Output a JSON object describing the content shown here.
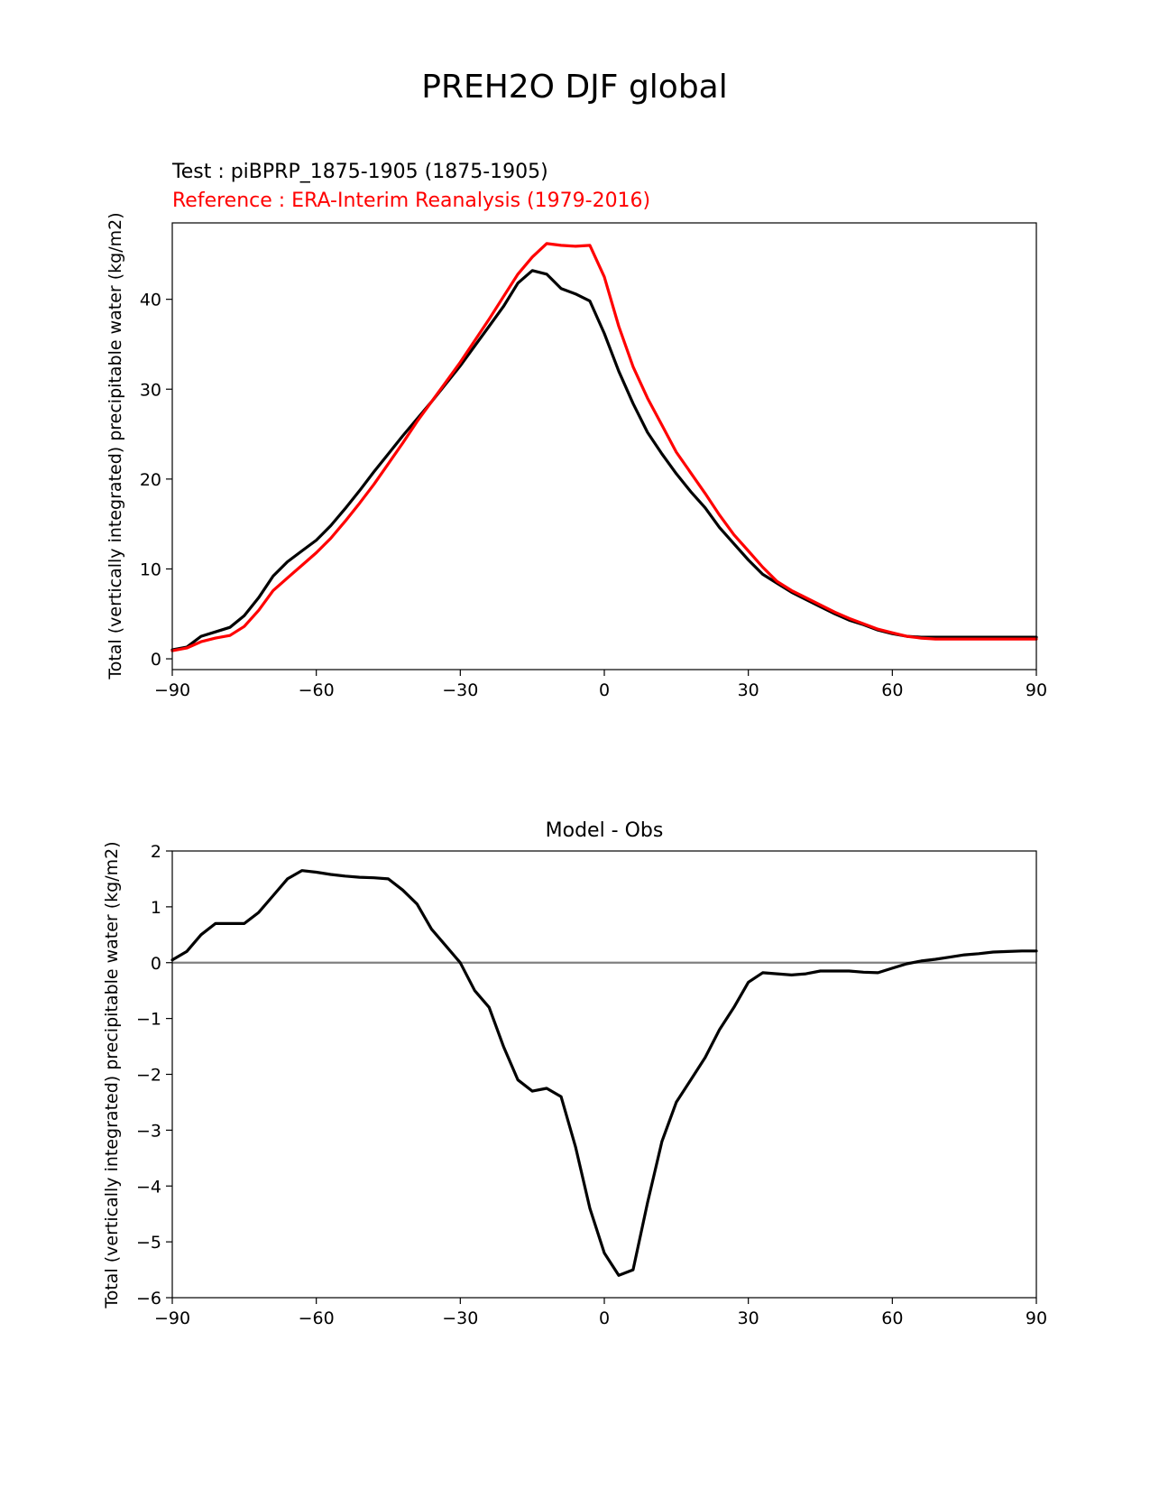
{
  "suptitle": "PREH2O DJF global",
  "colors": {
    "test": "#000000",
    "reference": "#ff0000",
    "zero_line": "#808080"
  },
  "legend": {
    "test": "Test : piBPRP_1875-1905 (1875-1905)",
    "reference": "Reference : ERA-Interim Reanalysis (1979-2016)"
  },
  "chart_data": [
    {
      "type": "line",
      "title": "",
      "xlabel": "",
      "ylabel": "Total (vertically integrated) precipitable water (kg/m2)",
      "xlim": [
        -90,
        90
      ],
      "ylim": [
        -1.2,
        48.5
      ],
      "xticks": [
        -90,
        -60,
        -30,
        0,
        30,
        60,
        90
      ],
      "xtick_labels": [
        "−90",
        "−60",
        "−30",
        "0",
        "30",
        "60",
        "90"
      ],
      "yticks": [
        0,
        10,
        20,
        30,
        40
      ],
      "ytick_labels": [
        "0",
        "10",
        "20",
        "30",
        "40"
      ],
      "series": [
        {
          "name": "Test : piBPRP_1875-1905 (1875-1905)",
          "color": "#000000",
          "x": [
            -90,
            -87,
            -84,
            -81,
            -78,
            -75,
            -72,
            -69,
            -66,
            -63,
            -60,
            -57,
            -54,
            -51,
            -48,
            -45,
            -42,
            -39,
            -36,
            -33,
            -30,
            -27,
            -24,
            -21,
            -18,
            -15,
            -12,
            -9,
            -6,
            -3,
            0,
            3,
            6,
            9,
            12,
            15,
            18,
            21,
            24,
            27,
            30,
            33,
            36,
            39,
            42,
            45,
            48,
            51,
            54,
            57,
            60,
            63,
            66,
            69,
            72,
            75,
            78,
            81,
            84,
            87,
            90
          ],
          "y": [
            1.0,
            1.3,
            2.5,
            3.0,
            3.5,
            4.8,
            6.8,
            9.2,
            10.8,
            12.0,
            13.2,
            14.8,
            16.7,
            18.7,
            20.8,
            22.8,
            24.8,
            26.7,
            28.6,
            30.6,
            32.6,
            34.8,
            37.0,
            39.2,
            41.8,
            43.2,
            42.8,
            41.2,
            40.6,
            39.8,
            36.2,
            32.0,
            28.4,
            25.2,
            22.8,
            20.6,
            18.6,
            16.8,
            14.6,
            12.8,
            11.0,
            9.4,
            8.4,
            7.4,
            6.6,
            5.8,
            5.0,
            4.3,
            3.8,
            3.2,
            2.8,
            2.5,
            2.4,
            2.4,
            2.4,
            2.4,
            2.4,
            2.4,
            2.4,
            2.4,
            2.4
          ]
        },
        {
          "name": "Reference : ERA-Interim Reanalysis (1979-2016)",
          "color": "#ff0000",
          "x": [
            -90,
            -87,
            -84,
            -81,
            -78,
            -75,
            -72,
            -69,
            -66,
            -63,
            -60,
            -57,
            -54,
            -51,
            -48,
            -45,
            -42,
            -39,
            -36,
            -33,
            -30,
            -27,
            -24,
            -21,
            -18,
            -15,
            -12,
            -9,
            -6,
            -3,
            0,
            3,
            6,
            9,
            12,
            15,
            18,
            21,
            24,
            27,
            30,
            33,
            36,
            39,
            42,
            45,
            48,
            51,
            54,
            57,
            60,
            63,
            66,
            69,
            72,
            75,
            78,
            81,
            84,
            87,
            90
          ],
          "y": [
            0.9,
            1.2,
            1.9,
            2.3,
            2.6,
            3.6,
            5.4,
            7.6,
            9.0,
            10.4,
            11.8,
            13.4,
            15.3,
            17.3,
            19.4,
            21.7,
            24.0,
            26.4,
            28.6,
            30.8,
            33.0,
            35.4,
            37.8,
            40.3,
            42.8,
            44.7,
            46.2,
            46.0,
            45.9,
            46.0,
            42.5,
            37.0,
            32.5,
            29.0,
            26.0,
            23.0,
            20.7,
            18.4,
            16.0,
            13.8,
            12.0,
            10.2,
            8.6,
            7.6,
            6.8,
            6.0,
            5.2,
            4.5,
            3.9,
            3.3,
            2.9,
            2.5,
            2.3,
            2.2,
            2.2,
            2.2,
            2.2,
            2.2,
            2.2,
            2.2,
            2.2
          ]
        }
      ]
    },
    {
      "type": "line",
      "title": "Model - Obs",
      "xlabel": "",
      "ylabel": "Total (vertically integrated) precipitable water (kg/m2)",
      "xlim": [
        -90,
        90
      ],
      "ylim": [
        -6,
        2
      ],
      "xticks": [
        -90,
        -60,
        -30,
        0,
        30,
        60,
        90
      ],
      "xtick_labels": [
        "−90",
        "−60",
        "−30",
        "0",
        "30",
        "60",
        "90"
      ],
      "yticks": [
        2,
        1,
        0,
        -1,
        -2,
        -3,
        -4,
        -5,
        -6
      ],
      "ytick_labels": [
        "2",
        "1",
        "0",
        "−1",
        "−2",
        "−3",
        "−4",
        "−5",
        "−6"
      ],
      "zero_line": 0,
      "series": [
        {
          "name": "Model - Obs",
          "color": "#000000",
          "x": [
            -90,
            -87,
            -84,
            -81,
            -78,
            -75,
            -72,
            -69,
            -66,
            -63,
            -60,
            -57,
            -54,
            -51,
            -48,
            -45,
            -42,
            -39,
            -36,
            -33,
            -30,
            -27,
            -24,
            -21,
            -18,
            -15,
            -12,
            -9,
            -6,
            -3,
            0,
            3,
            6,
            9,
            12,
            15,
            18,
            21,
            24,
            27,
            30,
            33,
            36,
            39,
            42,
            45,
            48,
            51,
            54,
            57,
            60,
            63,
            66,
            69,
            72,
            75,
            78,
            81,
            84,
            87,
            90
          ],
          "y": [
            0.05,
            0.2,
            0.5,
            0.7,
            0.7,
            0.7,
            0.9,
            1.2,
            1.5,
            1.65,
            1.62,
            1.58,
            1.55,
            1.53,
            1.52,
            1.5,
            1.3,
            1.05,
            0.6,
            0.3,
            0.0,
            -0.5,
            -0.8,
            -1.5,
            -2.1,
            -2.3,
            -2.25,
            -2.4,
            -3.3,
            -4.4,
            -5.2,
            -5.6,
            -5.5,
            -4.3,
            -3.2,
            -2.5,
            -2.1,
            -1.7,
            -1.2,
            -0.8,
            -0.35,
            -0.18,
            -0.2,
            -0.22,
            -0.2,
            -0.15,
            -0.15,
            -0.15,
            -0.17,
            -0.18,
            -0.1,
            -0.02,
            0.03,
            0.06,
            0.1,
            0.14,
            0.16,
            0.19,
            0.2,
            0.21,
            0.21
          ]
        }
      ]
    }
  ]
}
